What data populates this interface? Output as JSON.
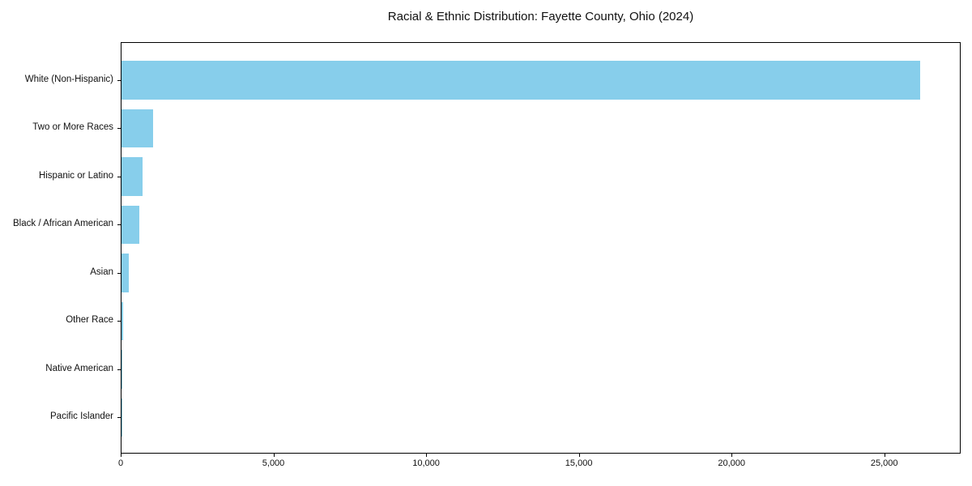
{
  "chart_data": {
    "type": "bar",
    "orientation": "horizontal",
    "title": "Racial & Ethnic Distribution: Fayette County, Ohio (2024)",
    "categories": [
      "White (Non-Hispanic)",
      "Two or More Races",
      "Hispanic or Latino",
      "Black / African American",
      "Asian",
      "Other Race",
      "Native American",
      "Pacific Islander"
    ],
    "values": [
      26200,
      1040,
      700,
      580,
      250,
      40,
      15,
      8
    ],
    "xlabel": "",
    "ylabel": "",
    "xlim": [
      0,
      27500
    ],
    "xticks": {
      "values": [
        0,
        5000,
        10000,
        15000,
        20000,
        25000
      ],
      "labels": [
        "0",
        "5,000",
        "10,000",
        "15,000",
        "20,000",
        "25,000"
      ]
    },
    "bar_color": "#87CEEB",
    "frame_color": "#000000",
    "text_color": "#111111",
    "background_color": "#ffffff",
    "grid": false,
    "legend": null
  }
}
